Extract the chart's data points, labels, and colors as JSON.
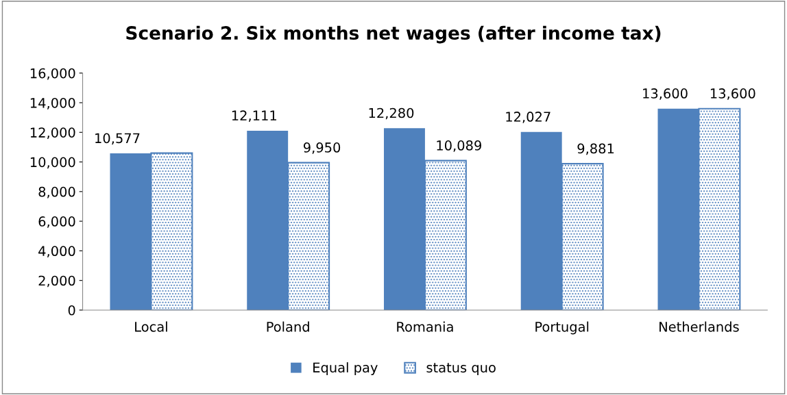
{
  "chart_data": {
    "type": "bar",
    "title": "Scenario 2. Six months net wages (after income tax)",
    "categories": [
      "Local",
      "Poland",
      "Romania",
      "Portugal",
      "Netherlands"
    ],
    "series": [
      {
        "name": "Equal pay",
        "color": "#4f81bd",
        "values": [
          10577,
          12111,
          12280,
          12027,
          13600
        ],
        "value_labels": [
          "10,577",
          "12,111",
          "12,280",
          "12,027",
          "13,600"
        ]
      },
      {
        "name": "status quo",
        "color": "#4f81bd",
        "values": [
          10600,
          9950,
          10089,
          9881,
          13600
        ],
        "value_labels": [
          null,
          "9,950",
          "10,089",
          "9,881",
          "13,600"
        ]
      }
    ],
    "ylim": [
      0,
      16000
    ],
    "yticks": [
      {
        "value": 0,
        "label": "0"
      },
      {
        "value": 2000,
        "label": "2,000"
      },
      {
        "value": 4000,
        "label": "4,000"
      },
      {
        "value": 6000,
        "label": "6,000"
      },
      {
        "value": 8000,
        "label": "8,000"
      },
      {
        "value": 10000,
        "label": "10,000"
      },
      {
        "value": 12000,
        "label": "12,000"
      },
      {
        "value": 14000,
        "label": "14,000"
      },
      {
        "value": 16000,
        "label": "16,000"
      }
    ],
    "grid": false,
    "legend": "bottom"
  }
}
